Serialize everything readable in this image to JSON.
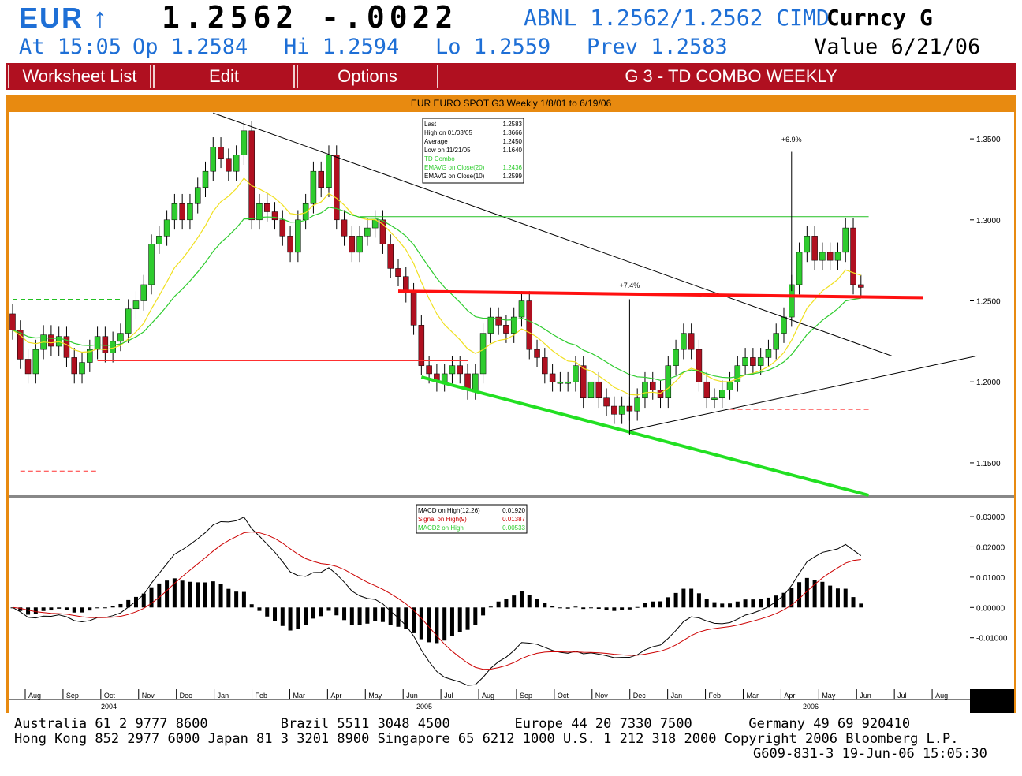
{
  "header": {
    "symbol": "EUR ↑",
    "price_line": "1.2562 -.0022",
    "bid_ask": "ABNL 1.2562/1.2562 CIMD",
    "curncy": "Curncy G",
    "at": "At 15:05",
    "op": "Op 1.2584",
    "hi": "Hi 1.2594",
    "lo": "Lo 1.2559",
    "prev": "Prev 1.2583",
    "value": "Value  6/21/06"
  },
  "menu": {
    "worksheet_label": "Worksheet List",
    "edit_label": "Edit",
    "options_label": "Options",
    "title": "G  3 - TD COMBO WEEKLY"
  },
  "chart_title": "EUR EURO SPOT G3 Weekly 1/8/01 to 6/19/06",
  "colors": {
    "up": "#2ecc2e",
    "down": "#b01020",
    "ema20": "#2ecc2e",
    "ema10": "#f0e020",
    "macd": "#000000",
    "signal": "#cc0000",
    "frame": "#e88a10",
    "menu": "#b01020"
  },
  "price_legend": [
    {
      "label": "Last",
      "value": "1.2583",
      "color": "#000000"
    },
    {
      "label": "High on  01/03/05",
      "value": "1.3666",
      "color": "#000000"
    },
    {
      "label": "Average",
      "value": "1.2450",
      "color": "#000000"
    },
    {
      "label": "Low on  11/21/05",
      "value": "1.1640",
      "color": "#000000"
    },
    {
      "label": "TD Combo",
      "value": "",
      "color": "#2ecc2e"
    },
    {
      "label": "EMAVG on Close(20)",
      "value": "1.2436",
      "color": "#2ecc2e"
    },
    {
      "label": "EMAVG on Close(10)",
      "value": "1.2599",
      "color": "#000000"
    }
  ],
  "macd_legend": [
    {
      "label": "MACD on High(12,26)",
      "value": "0.01920",
      "color": "#000000"
    },
    {
      "label": "Signal on High(9)",
      "value": "0.01387",
      "color": "#cc0000"
    },
    {
      "label": "MACD2 on High",
      "value": "0.00533",
      "color": "#2ecc2e"
    }
  ],
  "annotations": {
    "up_move_1": "+7.4%",
    "up_move_2": "+6.9%"
  },
  "chart_data": {
    "type": "candlestick",
    "period": "weekly",
    "y_ticks": [
      "1.3500",
      "1.3000",
      "1.2500",
      "1.2000",
      "1.1500"
    ],
    "ylim": [
      1.13,
      1.3666
    ],
    "macd_ticks": [
      "0.03000",
      "0.02000",
      "0.01000",
      "0.00000",
      "-0.01000"
    ],
    "macd_ylim": [
      -0.027,
      0.036
    ],
    "x_months": [
      "Aug",
      "Sep",
      "Oct",
      "Nov",
      "Dec",
      "Jan",
      "Feb",
      "Mar",
      "Apr",
      "May",
      "Jun",
      "Jul",
      "Aug",
      "Sep",
      "Oct",
      "Nov",
      "Dec",
      "Jan",
      "Feb",
      "Mar",
      "Apr",
      "May",
      "Jun",
      "Jul",
      "Aug"
    ],
    "x_years": [
      "2004",
      "2005",
      "2006"
    ],
    "weeks": 111,
    "closes": [
      1.232,
      1.214,
      1.205,
      1.22,
      1.229,
      1.222,
      1.228,
      1.215,
      1.205,
      1.212,
      1.22,
      1.228,
      1.218,
      1.225,
      1.23,
      1.245,
      1.25,
      1.26,
      1.285,
      1.29,
      1.3,
      1.31,
      1.3,
      1.31,
      1.32,
      1.33,
      1.345,
      1.338,
      1.33,
      1.34,
      1.355,
      1.3,
      1.31,
      1.305,
      1.3,
      1.29,
      1.28,
      1.3,
      1.31,
      1.33,
      1.32,
      1.34,
      1.3,
      1.29,
      1.28,
      1.29,
      1.295,
      1.3,
      1.285,
      1.27,
      1.265,
      1.255,
      1.235,
      1.21,
      1.205,
      1.2,
      1.205,
      1.21,
      1.205,
      1.195,
      1.205,
      1.23,
      1.24,
      1.235,
      1.23,
      1.24,
      1.25,
      1.22,
      1.215,
      1.205,
      1.2,
      1.2,
      1.2,
      1.21,
      1.19,
      1.2,
      1.19,
      1.185,
      1.18,
      1.185,
      1.182,
      1.19,
      1.2,
      1.195,
      1.19,
      1.21,
      1.22,
      1.23,
      1.22,
      1.2,
      1.19,
      1.19,
      1.195,
      1.2,
      1.21,
      1.215,
      1.21,
      1.215,
      1.22,
      1.23,
      1.24,
      1.26,
      1.28,
      1.29,
      1.275,
      1.28,
      1.275,
      1.28,
      1.295,
      1.26,
      1.2583
    ],
    "ema20_close": 1.2436,
    "ema10_close": 1.2599,
    "macd": {
      "macd_last": 0.0192,
      "signal_last": 0.01387,
      "macd2_last": 0.00533
    }
  },
  "footer": {
    "line1": "Australia 61 2 9777 8600         Brazil 5511 3048 4500        Europe 44 20 7330 7500       Germany 49 69 920410",
    "line2": "Hong Kong 852 2977 6000 Japan 81 3 3201 8900 Singapore 65 6212 1000 U.S. 1 212 318 2000 Copyright 2006 Bloomberg L.P.",
    "line3": "G609-831-3 19-Jun-06 15:05:30"
  }
}
